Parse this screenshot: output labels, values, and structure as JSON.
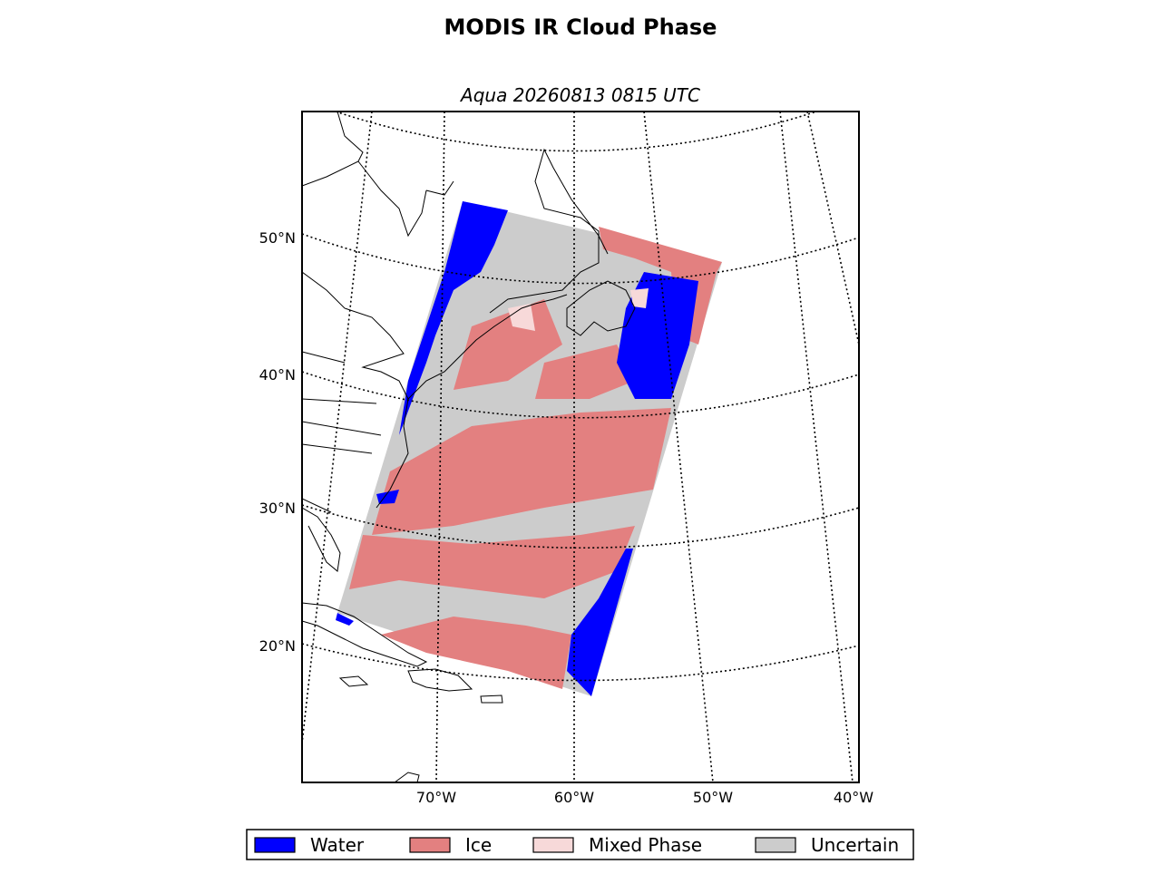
{
  "title": "MODIS IR Cloud Phase",
  "subtitle": "Aqua 20260813 0815 UTC",
  "latitude_labels": [
    "50°N",
    "40°N",
    "30°N",
    "20°N"
  ],
  "longitude_labels": [
    "70°W",
    "60°W",
    "50°W",
    "40°W"
  ],
  "legend": [
    {
      "label": "Water",
      "color": "#0000ff"
    },
    {
      "label": "Ice",
      "color": "#e38080"
    },
    {
      "label": "Mixed Phase",
      "color": "#f7d9d9"
    },
    {
      "label": "Uncertain",
      "color": "#cccccc"
    }
  ]
}
